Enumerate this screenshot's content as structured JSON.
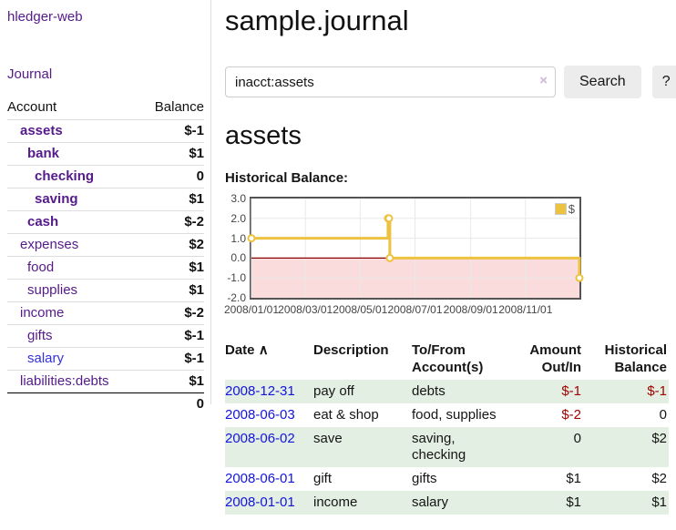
{
  "app": {
    "title": "hledger-web",
    "nav_journal": "Journal"
  },
  "sidebar": {
    "header": {
      "account": "Account",
      "balance": "Balance"
    },
    "accounts": [
      {
        "name": "assets",
        "balance": "$-1",
        "depth": 1,
        "in_current_query": true
      },
      {
        "name": "bank",
        "balance": "$1",
        "depth": 2,
        "in_current_query": true
      },
      {
        "name": "checking",
        "balance": "0",
        "depth": 3,
        "in_current_query": true
      },
      {
        "name": "saving",
        "balance": "$1",
        "depth": 3,
        "in_current_query": true
      },
      {
        "name": "cash",
        "balance": "$-2",
        "depth": 2,
        "in_current_query": true
      },
      {
        "name": "expenses",
        "balance": "$2",
        "depth": 1,
        "in_current_query": false
      },
      {
        "name": "food",
        "balance": "$1",
        "depth": 2,
        "in_current_query": false
      },
      {
        "name": "supplies",
        "balance": "$1",
        "depth": 2,
        "in_current_query": false
      },
      {
        "name": "income",
        "balance": "$-2",
        "depth": 1,
        "in_current_query": false
      },
      {
        "name": "gifts",
        "balance": "$-1",
        "depth": 2,
        "in_current_query": false
      },
      {
        "name": "salary",
        "balance": "$-1",
        "depth": 2,
        "in_current_query": false
      },
      {
        "name": "liabilities:debts",
        "balance": "$1",
        "depth": 1,
        "in_current_query": false
      }
    ],
    "total": "0"
  },
  "header": {
    "title": "sample.journal"
  },
  "search": {
    "value": "inacct:assets",
    "clear_icon": "×",
    "button": "Search",
    "help_button": "?"
  },
  "register": {
    "heading": "assets",
    "chart_label": "Historical Balance:"
  },
  "chart_data": {
    "type": "line",
    "step": true,
    "title": "Historical Balance",
    "legend_position": "top-right",
    "series": [
      {
        "name": "$",
        "color": "#edc240",
        "points": [
          [
            "2008-01-01",
            1
          ],
          [
            "2008-06-01",
            2
          ],
          [
            "2008-06-02",
            2
          ],
          [
            "2008-06-03",
            0
          ],
          [
            "2008-12-31",
            -1
          ]
        ]
      }
    ],
    "x_range": [
      "2008-01-01",
      "2008-12-31"
    ],
    "x_ticks": [
      {
        "date": "2008-01-01",
        "label": "2008/01/01"
      },
      {
        "date": "2008-03-01",
        "label": "2008/03/01"
      },
      {
        "date": "2008-05-01",
        "label": "2008/05/01"
      },
      {
        "date": "2008-07-01",
        "label": "2008/07/01"
      },
      {
        "date": "2008-09-01",
        "label": "2008/09/01"
      },
      {
        "date": "2008-11-01",
        "label": "2008/11/01"
      }
    ],
    "y_ticks": [
      {
        "value": 3,
        "label": "3.0"
      },
      {
        "value": 2,
        "label": "2.0"
      },
      {
        "value": 1,
        "label": "1.0"
      },
      {
        "value": 0,
        "label": "0.0"
      },
      {
        "value": -1,
        "label": "-1.0"
      },
      {
        "value": -2,
        "label": "-2.0"
      }
    ],
    "ylim": [
      -2,
      3
    ],
    "grid": true,
    "gridline_color": "#e8e8e8",
    "border_color": "#545454",
    "zero_line_color": "#8b0000",
    "negative_region_color": "#fbdcdc",
    "marker": "circle"
  },
  "transactions": {
    "columns": [
      "Date",
      "Description",
      "To/From Account(s)",
      "Amount Out/In",
      "Historical Balance"
    ],
    "sort_indicator": "∧",
    "rows": [
      {
        "date": "2008-12-31",
        "description": "pay off",
        "accounts": "debts",
        "amount": "$-1",
        "balance": "$-1"
      },
      {
        "date": "2008-06-03",
        "description": "eat & shop",
        "accounts": "food, supplies",
        "amount": "$-2",
        "balance": "0"
      },
      {
        "date": "2008-06-02",
        "description": "save",
        "accounts": "saving, checking",
        "amount": "0",
        "balance": "$2"
      },
      {
        "date": "2008-06-01",
        "description": "gift",
        "accounts": "gifts",
        "amount": "$1",
        "balance": "$2"
      },
      {
        "date": "2008-01-01",
        "description": "income",
        "accounts": "salary",
        "amount": "$1",
        "balance": "$1"
      }
    ]
  },
  "colors": {
    "link_purple": "#551a8b",
    "link_blue": "#1414dd",
    "negative_strong": "#a40000",
    "negative_muted": "#b96c6c",
    "row_highlight_green": "#e2efe2",
    "chart_series_yellow": "#edc240"
  }
}
